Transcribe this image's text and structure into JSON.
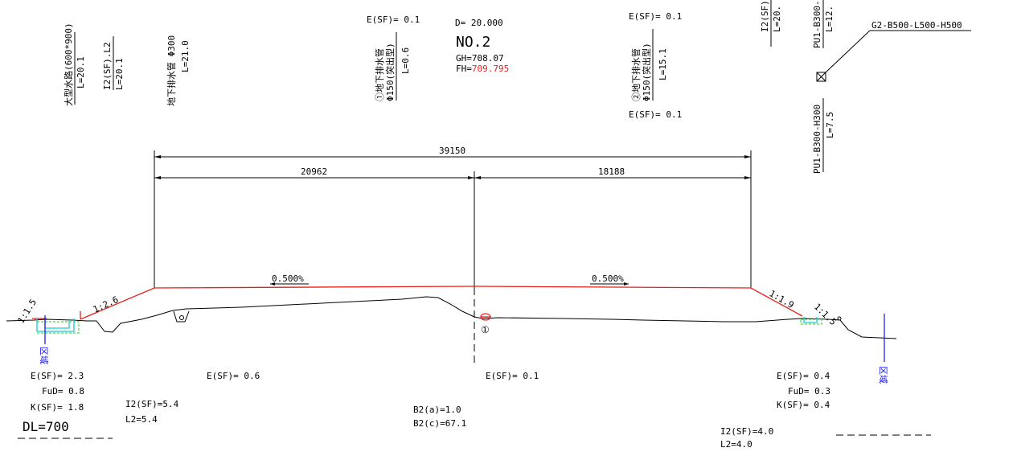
{
  "top_labels": {
    "oogata_name": "大型水路(600*900)",
    "oogata_len": "L=20.1",
    "i2_name": "I2(SF).L2",
    "i2_len": "L=20.1",
    "chika_name": "地下排水管 Φ300",
    "chika_len": "L=21.0",
    "pipe1_line1": "①地下排水管",
    "pipe1_line2": "Φ150(突出型)",
    "pipe1_len": "L=0.6",
    "pipe1_esf": "E(SF)= 0.1",
    "pipe2_line1": "②地下排水管",
    "pipe2_line2": "Φ150(突出型)",
    "pipe2_len": "L=15.1",
    "pipe2_esf_top": "E(SF)= 0.1",
    "pipe2_esf_bottom": "E(SF)= 0.1",
    "i2_right_name": "I2(SF).",
    "i2_right_len": "L=20.",
    "pu1_top_name": "PU1-B300-",
    "pu1_top_len": "L=12.",
    "pu1_bottom_name": "PU1-B300-H300",
    "pu1_bottom_len": "L=7.5",
    "g2_label": "G2-B500-L500-H500"
  },
  "station": {
    "distance": "D= 20.000",
    "number": "NO.2",
    "gh": "GH=708.07",
    "fh_prefix": "FH=",
    "fh_value": "709.795",
    "fh_color": "#e8201a"
  },
  "dimensions": {
    "total": "39150",
    "left": "20962",
    "right": "18188"
  },
  "grades": {
    "left": "0.500%",
    "right": "0.500%"
  },
  "slopes": {
    "far_left": "1:1.5",
    "left": "1:2.6",
    "right": "1:1.9",
    "far_right": "1:1.5"
  },
  "markers": {
    "circle_one": "①",
    "area_left": "区域",
    "area_right": "区域"
  },
  "bottom": {
    "left_esf": "E(SF)= 2.3",
    "left_fud": "FuD= 0.8",
    "left_ksf": "K(SF)= 1.8",
    "left_i2sf": "I2(SF)=5.4",
    "left_l2": "L2=5.4",
    "mid_left_esf": "E(SF)= 0.6",
    "center_esf": "E(SF)= 0.1",
    "b2a": "B2(a)=1.0",
    "b2c": "B2(c)=67.1",
    "right_esf": "E(SF)= 0.4",
    "right_fud": "FuD= 0.3",
    "right_ksf": "K(SF)= 0.4",
    "right_i2sf": "I2(SF)=4.0",
    "right_l2": "L2=4.0",
    "datum": "DL=700"
  },
  "colors": {
    "design_line": "#e8201a",
    "area_marker": "#1010ee",
    "ditch": "#19c9d6",
    "ground_hatch": "#22cc22"
  }
}
